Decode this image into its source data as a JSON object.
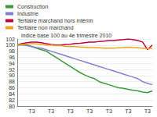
{
  "chart_data": {
    "type": "line",
    "subtitle": "indice base 100 au 4e trimestre 2010",
    "categories": [
      null,
      null,
      null,
      "T3",
      null,
      null,
      null,
      "T3",
      null,
      null,
      null,
      "T3",
      null,
      null,
      null,
      "T3",
      null,
      null,
      null,
      "T3",
      null,
      null,
      null,
      "T3",
      null,
      null,
      null,
      "T3",
      null
    ],
    "series": [
      {
        "name": "Construction",
        "color": "#3a9a3a",
        "values": [
          100,
          100.5,
          100,
          99.5,
          99,
          98.5,
          98,
          97,
          96,
          95,
          94,
          93,
          92,
          91,
          90.2,
          89.5,
          89,
          88,
          87.5,
          87,
          86.5,
          86,
          85.8,
          85.5,
          85.2,
          85,
          84.6,
          84.4,
          85
        ]
      },
      {
        "name": "Industrie",
        "color": "#8080d0",
        "values": [
          100,
          100,
          99.8,
          99.5,
          99.2,
          99,
          98.5,
          98,
          97.5,
          97,
          96.5,
          96,
          95.5,
          95,
          94.5,
          94,
          93.5,
          93,
          92.5,
          92,
          91.5,
          91,
          90.5,
          90,
          89.5,
          89,
          88,
          87.5,
          87
        ]
      },
      {
        "name": "Tertiaire marchand hors intérim",
        "color": "#c0003c",
        "values": [
          100,
          100.5,
          100.8,
          101,
          101,
          100.8,
          100.5,
          100.2,
          100,
          100,
          100.2,
          100.3,
          100.5,
          100.6,
          100.8,
          101,
          101,
          101.2,
          101.3,
          101.5,
          101.5,
          101.7,
          101.8,
          102,
          101.8,
          101.5,
          101,
          98.5,
          100
        ]
      },
      {
        "name": "Tertiaire non marchand",
        "color": "#f0a020",
        "values": [
          100,
          100.2,
          100.3,
          100.5,
          100.4,
          100.2,
          100,
          100,
          99.8,
          99.8,
          99.6,
          99.5,
          99.5,
          99.4,
          99.3,
          99.2,
          99.2,
          99.1,
          99,
          99,
          99,
          99.1,
          99.2,
          99.3,
          99.2,
          99.1,
          99,
          98.8,
          99
        ]
      }
    ],
    "ylim": [
      80,
      102
    ],
    "yticks": [
      80,
      82,
      84,
      86,
      88,
      90,
      92,
      94,
      96,
      98,
      100,
      102
    ],
    "grid": true,
    "legend": "top-left"
  }
}
